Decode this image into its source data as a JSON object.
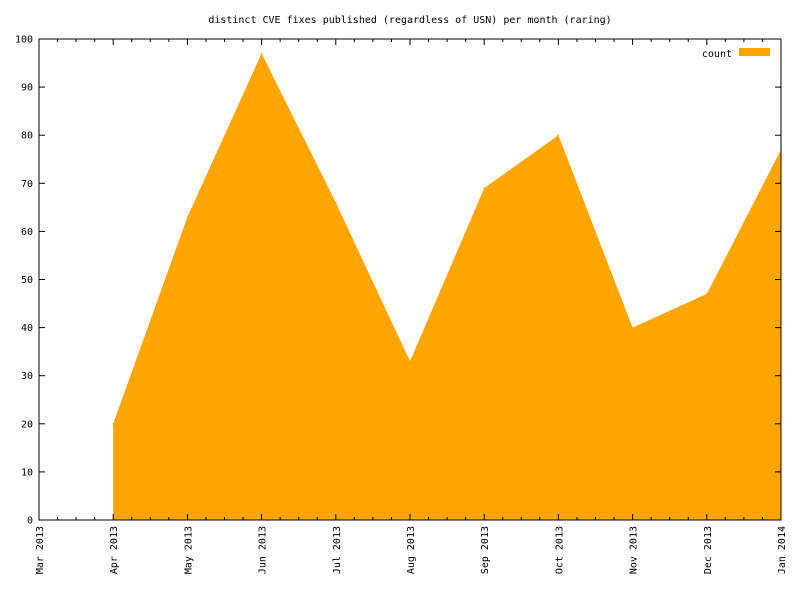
{
  "chart_data": {
    "type": "area",
    "title": "distinct CVE fixes published (regardless of USN) per month (raring)",
    "xlabel": "",
    "ylabel": "",
    "x": [
      "Mar 2013",
      "Apr 2013",
      "May 2013",
      "Jun 2013",
      "Jul 2013",
      "Aug 2013",
      "Sep 2013",
      "Oct 2013",
      "Nov 2013",
      "Dec 2013",
      "Jan 2014"
    ],
    "x_tick_labels": [
      "Mar 2013",
      "Apr 2013",
      "May 2013",
      "Jun 2013",
      "Jul 2013",
      "Aug 2013",
      "Sep 2013",
      "Oct 2013",
      "Nov 2013",
      "Dec 2013",
      "Jan 2014"
    ],
    "y_tick_labels": [
      "0",
      "10",
      "20",
      "30",
      "40",
      "50",
      "60",
      "70",
      "80",
      "90",
      "100"
    ],
    "ylim": [
      0,
      100
    ],
    "series": [
      {
        "name": "count",
        "x": [
          "Apr 2013",
          "May 2013",
          "Jun 2013",
          "Jul 2013",
          "Aug 2013",
          "Sep 2013",
          "Oct 2013",
          "Nov 2013",
          "Dec 2013",
          "Jan 2014"
        ],
        "values": [
          20,
          63,
          97,
          66,
          33,
          69,
          80,
          40,
          47,
          77
        ]
      }
    ],
    "legend": {
      "position": "top-right"
    },
    "grid": false,
    "colors": {
      "fill": "#ffa500",
      "axis": "#000000",
      "background": "#ffffff"
    }
  }
}
